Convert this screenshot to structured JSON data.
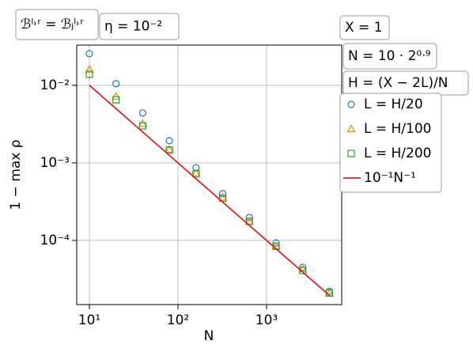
{
  "chart_data": {
    "type": "scatter",
    "x_label": "N",
    "y_label": "1 − max ρ",
    "annotations": [
      "ℬˡ˒ʳ = ℬⱼˡ˒ʳ",
      "η = 10⁻²",
      "X = 1",
      "N = 10 · 2⁰ᐧ⁹",
      "H = (X − 2L)/N"
    ],
    "x": [
      10,
      20,
      40,
      80,
      160,
      320,
      640,
      1280,
      2560,
      5120
    ],
    "series": [
      {
        "name": "L = H/20",
        "color": "#1f77b4",
        "marker": "circle",
        "values": [
          0.0256,
          0.0105,
          0.0044,
          0.00193,
          0.00087,
          0.0004,
          0.000198,
          9.3e-05,
          4.5e-05,
          2.2e-05
        ]
      },
      {
        "name": "L = H/100",
        "color": "#ff7f0e",
        "marker": "triangle",
        "values": [
          0.016,
          0.0072,
          0.0032,
          0.00149,
          0.00074,
          0.00036,
          0.000176,
          8.5e-05,
          4.3e-05,
          2.1e-05
        ]
      },
      {
        "name": "L = H/200",
        "color": "#2ca02c",
        "marker": "square",
        "values": [
          0.0139,
          0.0065,
          0.003,
          0.00146,
          0.00072,
          0.00035,
          0.000176,
          8.4e-05,
          4.1e-05,
          2.1e-05
        ]
      },
      {
        "name": "10⁻¹N⁻¹",
        "color": "#d62728",
        "marker": "line",
        "values": [
          0.01,
          0.005,
          0.0025,
          0.00125,
          0.000625,
          0.0003125,
          0.00015625,
          7.8125e-05,
          3.90625e-05,
          1.953125e-05
        ]
      }
    ],
    "xscale": "log",
    "yscale": "log",
    "xlim": [
      7.2,
      7050
    ],
    "ylim": [
      1.49e-05,
      0.033
    ],
    "xticks": [
      {
        "value": 10,
        "label": "10¹"
      },
      {
        "value": 100,
        "label": "10²"
      },
      {
        "value": 1000,
        "label": "10³"
      }
    ],
    "yticks": [
      {
        "value": 0.01,
        "label": "10⁻²"
      },
      {
        "value": 0.001,
        "label": "10⁻³"
      },
      {
        "value": 0.0001,
        "label": "10⁻⁴"
      }
    ],
    "grid": true,
    "legend": "right"
  }
}
